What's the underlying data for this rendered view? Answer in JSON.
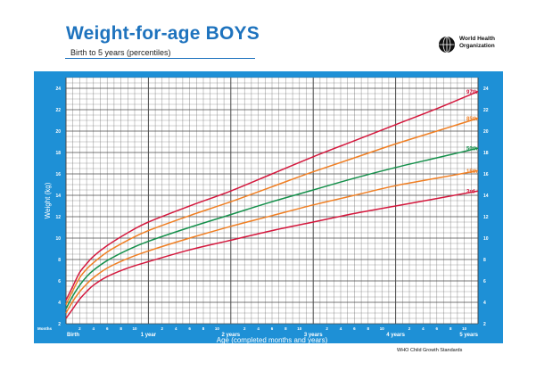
{
  "header": {
    "title": "Weight-for-age BOYS",
    "subtitle": "Birth to 5 years (percentiles)",
    "logo_line1": "World Health",
    "logo_line2": "Organization"
  },
  "footer": {
    "source": "WHO Child Growth Standards"
  },
  "colors": {
    "frame": "#1e90d6",
    "plot_bg": "#ffffff",
    "grid": "#4a4a4a",
    "p3": "#d4183d",
    "p15": "#f07f23",
    "p50": "#15904b",
    "p85": "#f07f23",
    "p97": "#d4183d"
  },
  "chart_data": {
    "type": "line",
    "title": "Weight-for-age BOYS",
    "subtitle": "Birth to 5 years (percentiles)",
    "xlabel": "Age (completed months and years)",
    "ylabel": "Weight (kg)",
    "xlim": [
      0,
      60
    ],
    "ylim": [
      2,
      25
    ],
    "yticks": [
      2,
      4,
      6,
      8,
      10,
      12,
      14,
      16,
      18,
      20,
      22,
      24
    ],
    "x_month_tick_label": "Months",
    "x_year_labels": [
      {
        "month": 0,
        "label": "Birth"
      },
      {
        "month": 12,
        "label": "1 year"
      },
      {
        "month": 24,
        "label": "2 years"
      },
      {
        "month": 36,
        "label": "3 years"
      },
      {
        "month": 48,
        "label": "4 years"
      },
      {
        "month": 60,
        "label": "5 years"
      }
    ],
    "x_month_labels": [
      "2",
      "4",
      "6",
      "8",
      "10"
    ],
    "grid": true,
    "x": [
      0,
      1,
      2,
      3,
      4,
      6,
      9,
      12,
      18,
      24,
      30,
      36,
      42,
      48,
      54,
      60
    ],
    "series": [
      {
        "name": "97th",
        "values": [
          4.2,
          5.5,
          6.8,
          7.6,
          8.3,
          9.3,
          10.5,
          11.5,
          13.0,
          14.4,
          16.0,
          17.6,
          19.1,
          20.6,
          22.1,
          23.7
        ]
      },
      {
        "name": "85th",
        "values": [
          3.8,
          5.1,
          6.3,
          7.1,
          7.7,
          8.7,
          9.8,
          10.7,
          12.1,
          13.4,
          14.8,
          16.2,
          17.5,
          18.8,
          20.0,
          21.2
        ]
      },
      {
        "name": "50th",
        "values": [
          3.4,
          4.6,
          5.6,
          6.4,
          7.0,
          7.9,
          8.9,
          9.7,
          11.0,
          12.2,
          13.4,
          14.5,
          15.6,
          16.6,
          17.5,
          18.4
        ]
      },
      {
        "name": "15th",
        "values": [
          3.0,
          4.1,
          5.0,
          5.7,
          6.3,
          7.2,
          8.1,
          8.8,
          10.0,
          11.1,
          12.1,
          13.1,
          14.0,
          14.9,
          15.6,
          16.3
        ]
      },
      {
        "name": "3rd",
        "values": [
          2.5,
          3.4,
          4.3,
          5.0,
          5.6,
          6.4,
          7.2,
          7.8,
          8.9,
          9.8,
          10.7,
          11.5,
          12.3,
          13.0,
          13.7,
          14.4
        ]
      }
    ]
  }
}
